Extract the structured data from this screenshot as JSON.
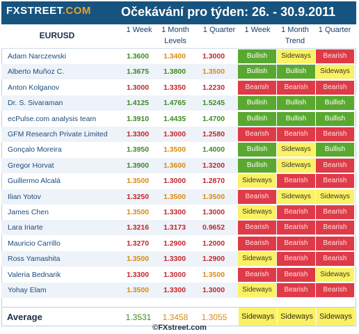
{
  "header": {
    "logo_main": "FXSTREET",
    "logo_dot": ".COM",
    "title": "Očekávání pro týden: 26. - 30.9.2011"
  },
  "columns": {
    "pair": "EURUSD",
    "w1": "1 Week",
    "m1": "1 Month",
    "q1": "1 Quarter",
    "levels": "Levels",
    "tw1": "1 Week",
    "tm1": "1 Month",
    "tq1": "1 Quarter",
    "trend": "Trend"
  },
  "colors": {
    "header_bg": "#17537f",
    "bullish": "#59a82f",
    "bearish": "#df3a48",
    "sideways": "#fbf165",
    "value_green": "#3d8a22",
    "value_orange": "#d98a12",
    "value_red": "#c4262e"
  },
  "rows": [
    {
      "name": "Adam Narczewski",
      "w": "1.3600",
      "m": "1.3400",
      "q": "1.3000",
      "wc": "green",
      "mc": "orange",
      "qc": "red",
      "tw": "Bullish",
      "tm": "Sideways",
      "tq": "Bearish"
    },
    {
      "name": "Alberto Muñoz C.",
      "w": "1.3675",
      "m": "1.3800",
      "q": "1.3500",
      "wc": "green",
      "mc": "green",
      "qc": "orange",
      "tw": "Bullish",
      "tm": "Bullish",
      "tq": "Sideways"
    },
    {
      "name": "Anton Kolganov",
      "w": "1.3000",
      "m": "1.3350",
      "q": "1.2230",
      "wc": "red",
      "mc": "red",
      "qc": "red",
      "tw": "Bearish",
      "tm": "Bearish",
      "tq": "Bearish"
    },
    {
      "name": "Dr. S. Sivaraman",
      "w": "1.4125",
      "m": "1.4765",
      "q": "1.5245",
      "wc": "green",
      "mc": "green",
      "qc": "green",
      "tw": "Bullish",
      "tm": "Bullish",
      "tq": "Bullish"
    },
    {
      "name": "ecPulse.com analysis team",
      "w": "1.3910",
      "m": "1.4435",
      "q": "1.4700",
      "wc": "green",
      "mc": "green",
      "qc": "green",
      "tw": "Bullish",
      "tm": "Bullish",
      "tq": "Bullish"
    },
    {
      "name": "GFM Research Private Limited",
      "w": "1.3300",
      "m": "1.3000",
      "q": "1.2580",
      "wc": "red",
      "mc": "red",
      "qc": "red",
      "tw": "Bearish",
      "tm": "Bearish",
      "tq": "Bearish"
    },
    {
      "name": "Gonçalo Moreira",
      "w": "1.3950",
      "m": "1.3500",
      "q": "1.4000",
      "wc": "green",
      "mc": "orange",
      "qc": "green",
      "tw": "Bullish",
      "tm": "Sideways",
      "tq": "Bullish"
    },
    {
      "name": "Gregor Horvat",
      "w": "1.3900",
      "m": "1.3600",
      "q": "1.3200",
      "wc": "green",
      "mc": "orange",
      "qc": "red",
      "tw": "Bullish",
      "tm": "Sideways",
      "tq": "Bearish"
    },
    {
      "name": "Guillermo Alcalá",
      "w": "1.3500",
      "m": "1.3000",
      "q": "1.2870",
      "wc": "orange",
      "mc": "red",
      "qc": "red",
      "tw": "Sideways",
      "tm": "Bearish",
      "tq": "Bearish"
    },
    {
      "name": "Ilian Yotov",
      "w": "1.3250",
      "m": "1.3500",
      "q": "1.3500",
      "wc": "red",
      "mc": "orange",
      "qc": "orange",
      "tw": "Bearish",
      "tm": "Sideways",
      "tq": "Sideways"
    },
    {
      "name": "James Chen",
      "w": "1.3500",
      "m": "1.3300",
      "q": "1.3000",
      "wc": "orange",
      "mc": "red",
      "qc": "red",
      "tw": "Sideways",
      "tm": "Bearish",
      "tq": "Bearish"
    },
    {
      "name": "Lara Iriarte",
      "w": "1.3216",
      "m": "1.3173",
      "q": "0.9652",
      "wc": "red",
      "mc": "red",
      "qc": "red",
      "tw": "Bearish",
      "tm": "Bearish",
      "tq": "Bearish"
    },
    {
      "name": "Mauricio Carrillo",
      "w": "1.3270",
      "m": "1.2900",
      "q": "1.2000",
      "wc": "red",
      "mc": "red",
      "qc": "red",
      "tw": "Bearish",
      "tm": "Bearish",
      "tq": "Bearish"
    },
    {
      "name": "Ross Yamashita",
      "w": "1.3500",
      "m": "1.3300",
      "q": "1.2900",
      "wc": "orange",
      "mc": "red",
      "qc": "red",
      "tw": "Sideways",
      "tm": "Bearish",
      "tq": "Bearish"
    },
    {
      "name": "Valeria Bednarik",
      "w": "1.3300",
      "m": "1.3000",
      "q": "1.3500",
      "wc": "red",
      "mc": "red",
      "qc": "orange",
      "tw": "Bearish",
      "tm": "Bearish",
      "tq": "Sideways"
    },
    {
      "name": "Yohay Elam",
      "w": "1.3500",
      "m": "1.3300",
      "q": "1.3000",
      "wc": "orange",
      "mc": "red",
      "qc": "red",
      "tw": "Sideways",
      "tm": "Bearish",
      "tq": "Bearish"
    }
  ],
  "average": {
    "label": "Average",
    "w": "1.3531",
    "m": "1.3458",
    "q": "1.3055",
    "tw": "Sideways",
    "tm": "Sideways",
    "tq": "Sideways"
  },
  "footer": "©FXstreet.com"
}
